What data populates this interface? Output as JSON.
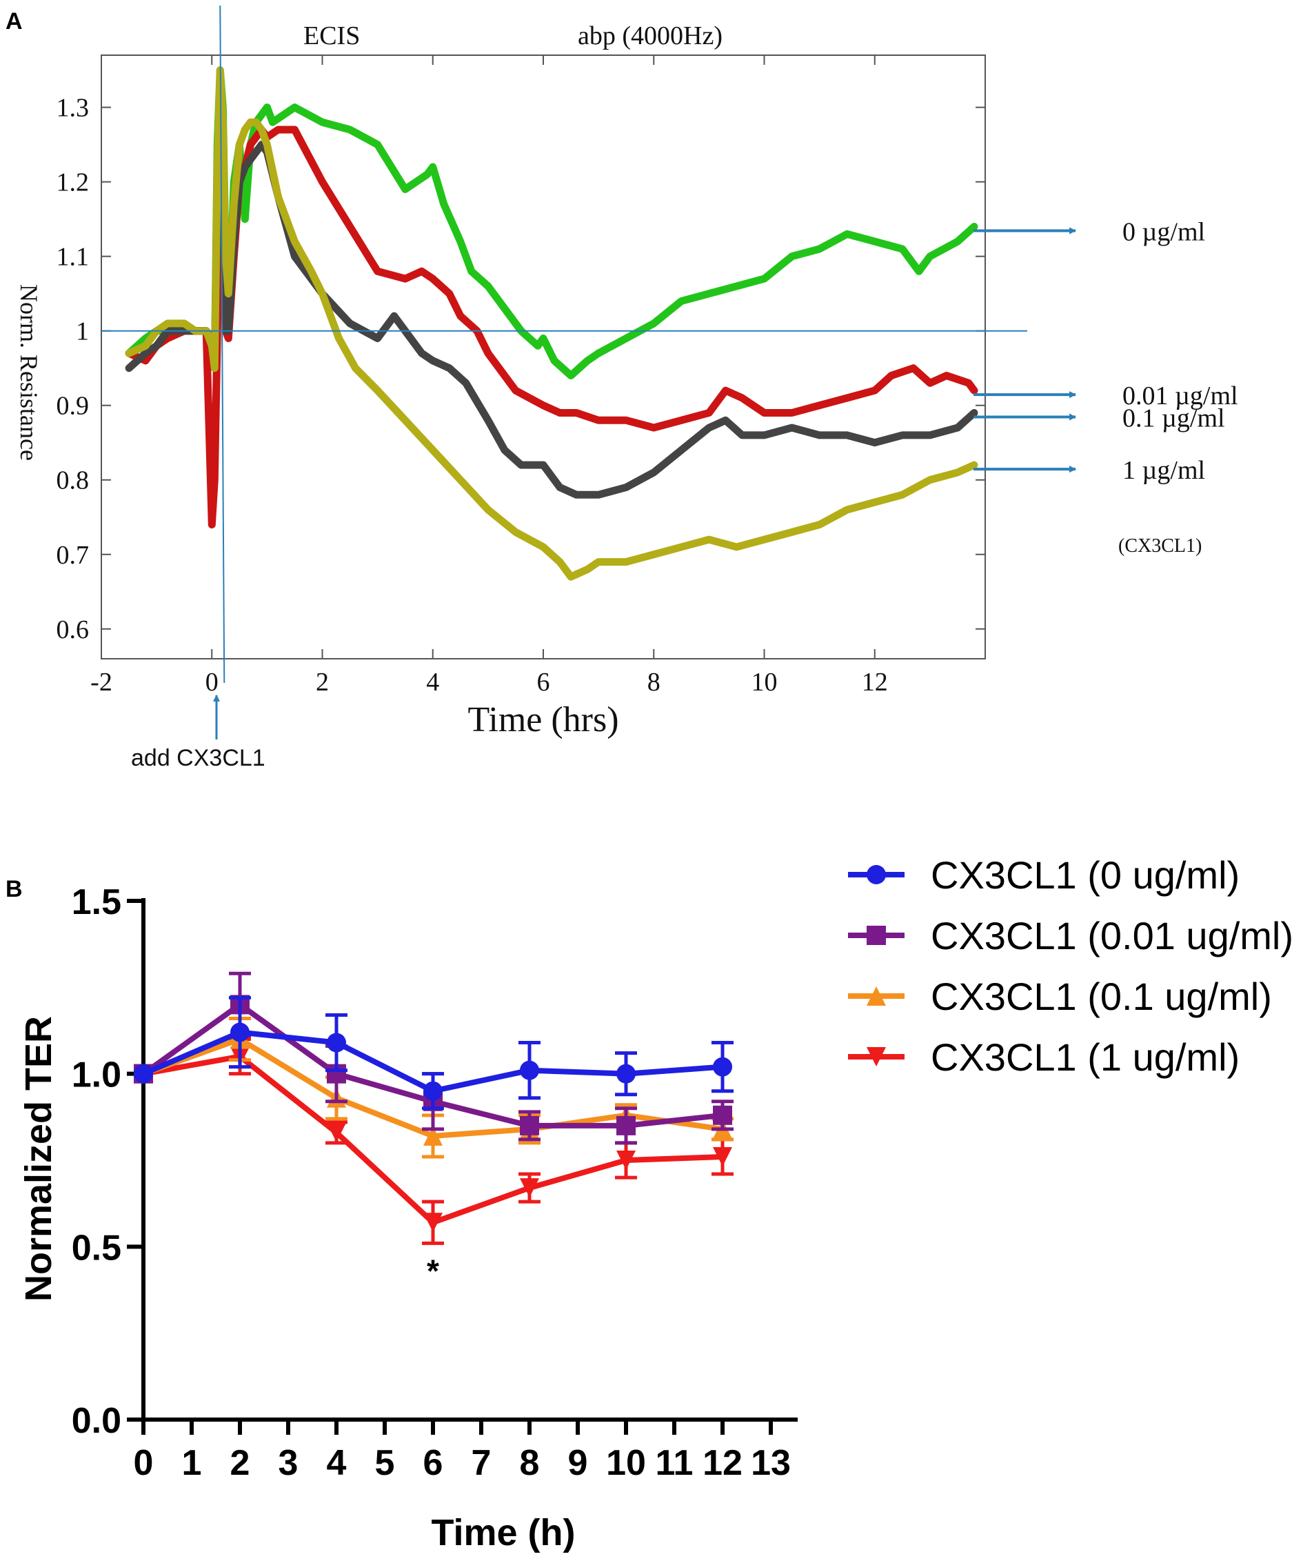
{
  "panel_labels": {
    "a": "A",
    "b": "B"
  },
  "chart_data": [
    {
      "id": "panel-a",
      "type": "line",
      "title_left": "ECIS",
      "title_right": "abp (4000Hz)",
      "xlabel": "Time (hrs)",
      "ylabel": "Norm. Resistance",
      "xlim": [
        -2,
        14
      ],
      "ylim": [
        0.56,
        1.37
      ],
      "xticks": [
        -2,
        0,
        2,
        4,
        6,
        8,
        10,
        12
      ],
      "xtick_labels": [
        "-2",
        "0",
        "2",
        "4",
        "6",
        "8",
        "10",
        "12"
      ],
      "yticks": [
        0.6,
        0.7,
        0.8,
        0.9,
        1,
        1.1,
        1.2,
        1.3
      ],
      "ytick_labels": [
        "0.6",
        "0.7",
        "0.8",
        "0.9",
        "1",
        "1.1",
        "1.2",
        "1.3"
      ],
      "reference_line_y": 1.0,
      "reference_line_x": 0.15,
      "annotation_add": "add CX3CL1",
      "unit_note": "(CX3CL1)",
      "series": [
        {
          "name": "0  µg/ml",
          "color": "#22c41a",
          "x": [
            -1.5,
            -1.2,
            -1,
            -0.8,
            -0.5,
            -0.3,
            -0.1,
            0,
            0.05,
            0.1,
            0.15,
            0.2,
            0.25,
            0.3,
            0.4,
            0.5,
            0.6,
            0.7,
            0.8,
            0.9,
            1,
            1.1,
            1.3,
            1.5,
            2,
            2.5,
            3,
            3.5,
            3.7,
            3.9,
            4,
            4.2,
            4.5,
            4.7,
            5,
            5.3,
            5.6,
            5.9,
            6,
            6.2,
            6.5,
            6.8,
            7,
            7.5,
            8,
            8.5,
            9,
            9.5,
            10,
            10.5,
            11,
            11.5,
            12,
            12.5,
            12.8,
            13,
            13.5,
            13.8
          ],
          "y": [
            0.97,
            0.99,
            1.0,
            1.0,
            1.01,
            1.0,
            1.0,
            0.99,
            0.95,
            1.25,
            1.35,
            1.3,
            1.1,
            1.0,
            1.2,
            1.25,
            1.15,
            1.25,
            1.28,
            1.29,
            1.3,
            1.28,
            1.29,
            1.3,
            1.28,
            1.27,
            1.25,
            1.19,
            1.2,
            1.21,
            1.22,
            1.17,
            1.12,
            1.08,
            1.06,
            1.03,
            1.0,
            0.98,
            0.99,
            0.96,
            0.94,
            0.96,
            0.97,
            0.99,
            1.01,
            1.04,
            1.05,
            1.06,
            1.07,
            1.1,
            1.11,
            1.13,
            1.12,
            1.11,
            1.08,
            1.1,
            1.12,
            1.14
          ]
        },
        {
          "name": "0.01 µg/ml",
          "color": "#cc1414",
          "x": [
            -1.5,
            -1.2,
            -1,
            -0.8,
            -0.5,
            -0.3,
            -0.1,
            0,
            0.05,
            0.1,
            0.15,
            0.2,
            0.25,
            0.3,
            0.4,
            0.5,
            0.6,
            0.7,
            0.8,
            0.9,
            1,
            1.2,
            1.5,
            2,
            2.5,
            3,
            3.5,
            3.8,
            4,
            4.3,
            4.5,
            4.8,
            5,
            5.5,
            6,
            6.3,
            6.6,
            7,
            7.5,
            8,
            8.5,
            9,
            9.3,
            9.6,
            10,
            10.5,
            11,
            11.5,
            12,
            12.3,
            12.7,
            13,
            13.3,
            13.7,
            13.8
          ],
          "y": [
            0.97,
            0.96,
            0.98,
            0.99,
            1.0,
            1.0,
            1.0,
            0.74,
            0.8,
            1.0,
            1.3,
            1.15,
            1.0,
            0.99,
            1.1,
            1.2,
            1.22,
            1.25,
            1.26,
            1.27,
            1.26,
            1.27,
            1.27,
            1.2,
            1.14,
            1.08,
            1.07,
            1.08,
            1.07,
            1.05,
            1.02,
            1.0,
            0.97,
            0.92,
            0.9,
            0.89,
            0.89,
            0.88,
            0.88,
            0.87,
            0.88,
            0.89,
            0.92,
            0.91,
            0.89,
            0.89,
            0.9,
            0.91,
            0.92,
            0.94,
            0.95,
            0.93,
            0.94,
            0.93,
            0.92
          ]
        },
        {
          "name": "0.1 µg/ml",
          "color": "#444444",
          "x": [
            -1.5,
            -1.2,
            -1,
            -0.8,
            -0.5,
            -0.3,
            -0.1,
            0,
            0.05,
            0.1,
            0.15,
            0.2,
            0.25,
            0.3,
            0.4,
            0.5,
            0.6,
            0.7,
            0.8,
            0.9,
            1,
            1.2,
            1.5,
            2,
            2.5,
            3,
            3.3,
            3.5,
            3.8,
            4,
            4.3,
            4.6,
            5,
            5.3,
            5.6,
            6,
            6.3,
            6.6,
            7,
            7.5,
            8,
            8.5,
            9,
            9.3,
            9.6,
            10,
            10.5,
            11,
            11.5,
            12,
            12.5,
            13,
            13.5,
            13.8
          ],
          "y": [
            0.95,
            0.97,
            0.98,
            1.0,
            1.0,
            1.0,
            1.0,
            0.99,
            0.95,
            1.2,
            1.33,
            1.2,
            1.0,
            1.0,
            1.12,
            1.2,
            1.22,
            1.23,
            1.24,
            1.25,
            1.24,
            1.18,
            1.1,
            1.05,
            1.01,
            0.99,
            1.02,
            1.0,
            0.97,
            0.96,
            0.95,
            0.93,
            0.88,
            0.84,
            0.82,
            0.82,
            0.79,
            0.78,
            0.78,
            0.79,
            0.81,
            0.84,
            0.87,
            0.88,
            0.86,
            0.86,
            0.87,
            0.86,
            0.86,
            0.85,
            0.86,
            0.86,
            0.87,
            0.89
          ]
        },
        {
          "name": "1 µg/ml",
          "color": "#b3ad18",
          "x": [
            -1.5,
            -1.2,
            -1,
            -0.8,
            -0.5,
            -0.3,
            -0.1,
            0,
            0.05,
            0.1,
            0.15,
            0.2,
            0.25,
            0.3,
            0.4,
            0.5,
            0.6,
            0.7,
            0.8,
            0.9,
            1,
            1.2,
            1.5,
            1.8,
            2,
            2.3,
            2.6,
            3,
            3.5,
            4,
            4.5,
            5,
            5.5,
            6,
            6.3,
            6.5,
            6.8,
            7,
            7.5,
            8,
            8.5,
            9,
            9.5,
            10,
            10.5,
            11,
            11.5,
            12,
            12.5,
            13,
            13.5,
            13.8
          ],
          "y": [
            0.97,
            0.98,
            1.0,
            1.01,
            1.01,
            1.0,
            1.0,
            0.98,
            0.95,
            1.22,
            1.35,
            1.28,
            1.1,
            1.05,
            1.17,
            1.25,
            1.27,
            1.28,
            1.28,
            1.27,
            1.25,
            1.18,
            1.12,
            1.08,
            1.05,
            0.99,
            0.95,
            0.92,
            0.88,
            0.84,
            0.8,
            0.76,
            0.73,
            0.71,
            0.69,
            0.67,
            0.68,
            0.69,
            0.69,
            0.7,
            0.71,
            0.72,
            0.71,
            0.72,
            0.73,
            0.74,
            0.76,
            0.77,
            0.78,
            0.8,
            0.81,
            0.82
          ]
        }
      ],
      "legend": [
        "0  µg/ml",
        "0.01 µg/ml",
        "0.1 µg/ml",
        "1 µg/ml"
      ]
    },
    {
      "id": "panel-b",
      "type": "line",
      "xlabel": "Time (h)",
      "ylabel": "Normalized TER",
      "xlim": [
        0,
        13
      ],
      "ylim": [
        0,
        1.5
      ],
      "xticks": [
        0,
        1,
        2,
        3,
        4,
        5,
        6,
        7,
        8,
        9,
        10,
        11,
        12,
        13
      ],
      "xtick_labels": [
        "0",
        "1",
        "2",
        "3",
        "4",
        "5",
        "6",
        "7",
        "8",
        "9",
        "10",
        "11",
        "12",
        "13"
      ],
      "yticks": [
        0,
        0.5,
        1.0,
        1.5
      ],
      "ytick_labels": [
        "0.0",
        "0.5",
        "1.0",
        "1.5"
      ],
      "x": [
        0,
        2,
        4,
        6,
        8,
        10,
        12
      ],
      "significance_marker": "*",
      "significance_x": 6,
      "series": [
        {
          "name": "CX3CL1 (0 ug/ml)",
          "color": "#1f1fe0",
          "marker": "circle",
          "values": [
            1.0,
            1.12,
            1.09,
            0.95,
            1.01,
            1.0,
            1.02
          ],
          "errors": [
            0,
            0.1,
            0.08,
            0.05,
            0.08,
            0.06,
            0.07
          ]
        },
        {
          "name": "CX3CL1 (0.01 ug/ml)",
          "color": "#7a1a8a",
          "marker": "square",
          "values": [
            1.0,
            1.2,
            1.0,
            0.92,
            0.85,
            0.85,
            0.88
          ],
          "errors": [
            0,
            0.09,
            0.08,
            0.08,
            0.04,
            0.05,
            0.04
          ]
        },
        {
          "name": "CX3CL1 (0.1 ug/ml)",
          "color": "#f5901e",
          "marker": "triangle-up",
          "values": [
            1.0,
            1.1,
            0.93,
            0.82,
            0.84,
            0.88,
            0.84
          ],
          "errors": [
            0,
            0.06,
            0.06,
            0.06,
            0.04,
            0.03,
            0.03
          ]
        },
        {
          "name": "CX3CL1 (1 ug/ml)",
          "color": "#ee1b1b",
          "marker": "triangle-down",
          "values": [
            1.0,
            1.05,
            0.83,
            0.57,
            0.67,
            0.75,
            0.76
          ],
          "errors": [
            0,
            0.05,
            0.03,
            0.06,
            0.04,
            0.05,
            0.05
          ]
        }
      ]
    }
  ]
}
